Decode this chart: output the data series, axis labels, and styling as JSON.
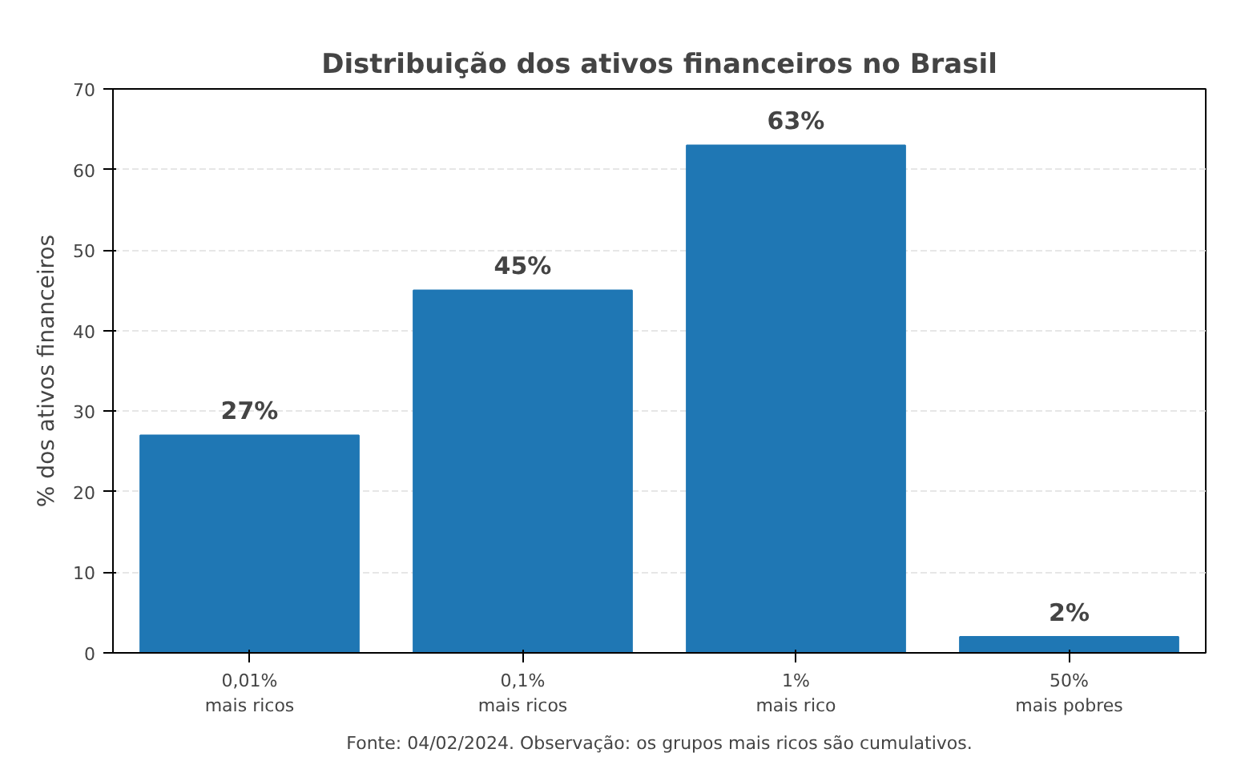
{
  "chart_data": {
    "type": "bar",
    "title": "Distribuição dos ativos financeiros no Brasil",
    "ylabel": "% dos ativos financeiros",
    "categories": [
      "0,01%\nmais ricos",
      "0,1%\nmais ricos",
      "1%\nmais rico",
      "50%\nmais pobres"
    ],
    "values": [
      27,
      45,
      63,
      2
    ],
    "value_labels": [
      "27%",
      "45%",
      "63%",
      "2%"
    ],
    "color": "#1f77b4",
    "ylim": [
      0,
      70
    ],
    "yticks": [
      0,
      10,
      20,
      30,
      40,
      50,
      60,
      70
    ],
    "grid": "y",
    "annotations": [
      "Fonte: 04/02/2024. Observação: os grupos mais ricos são cumulativos."
    ]
  }
}
